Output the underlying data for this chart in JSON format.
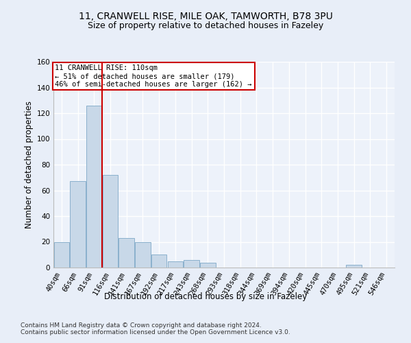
{
  "title_line1": "11, CRANWELL RISE, MILE OAK, TAMWORTH, B78 3PU",
  "title_line2": "Size of property relative to detached houses in Fazeley",
  "xlabel": "Distribution of detached houses by size in Fazeley",
  "ylabel": "Number of detached properties",
  "categories": [
    "40sqm",
    "66sqm",
    "91sqm",
    "116sqm",
    "141sqm",
    "167sqm",
    "192sqm",
    "217sqm",
    "243sqm",
    "268sqm",
    "293sqm",
    "318sqm",
    "344sqm",
    "369sqm",
    "394sqm",
    "420sqm",
    "445sqm",
    "470sqm",
    "495sqm",
    "521sqm",
    "546sqm"
  ],
  "values": [
    20,
    67,
    126,
    72,
    23,
    20,
    10,
    5,
    6,
    4,
    0,
    0,
    0,
    0,
    0,
    0,
    0,
    0,
    2,
    0,
    0
  ],
  "bar_color": "#c8d8e8",
  "bar_edge_color": "#8ab0cc",
  "vline_x_index": 2.5,
  "vline_color": "#cc0000",
  "annotation_text": "11 CRANWELL RISE: 110sqm\n← 51% of detached houses are smaller (179)\n46% of semi-detached houses are larger (162) →",
  "annotation_box_color": "#ffffff",
  "annotation_box_edge": "#cc0000",
  "ylim": [
    0,
    160
  ],
  "yticks": [
    0,
    20,
    40,
    60,
    80,
    100,
    120,
    140,
    160
  ],
  "footer": "Contains HM Land Registry data © Crown copyright and database right 2024.\nContains public sector information licensed under the Open Government Licence v3.0.",
  "bg_color": "#e8eef8",
  "plot_bg_color": "#edf2fa",
  "grid_color": "#ffffff",
  "title_fontsize": 10,
  "subtitle_fontsize": 9,
  "axis_label_fontsize": 8.5,
  "tick_fontsize": 7.5,
  "footer_fontsize": 6.5,
  "annotation_fontsize": 7.5
}
